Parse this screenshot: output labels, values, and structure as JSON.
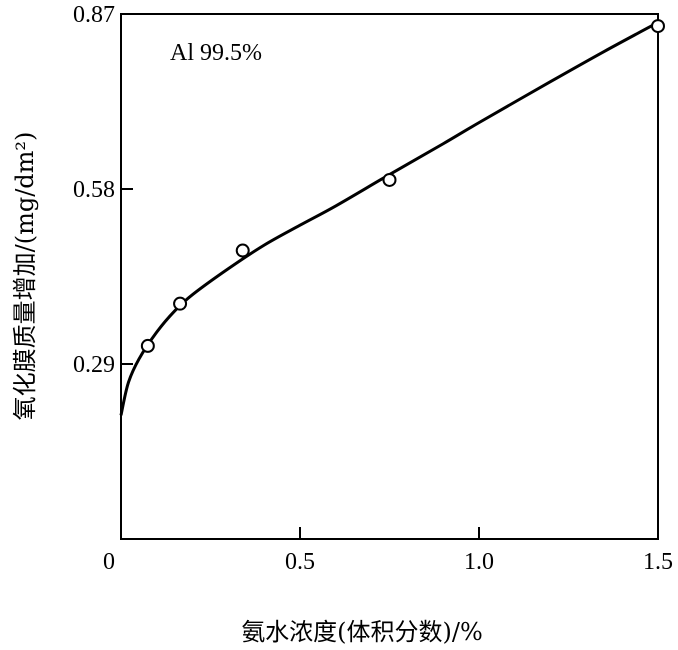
{
  "chart_data": {
    "type": "scatter",
    "title": "",
    "xlabel": "氨水浓度(体积分数)/%",
    "ylabel": "氧化膜质量增加/(mg/dm²)",
    "xlim": [
      0,
      1.5
    ],
    "ylim": [
      0,
      0.87
    ],
    "x_ticks": [
      {
        "value": 0,
        "label": "0"
      },
      {
        "value": 0.5,
        "label": "0.5"
      },
      {
        "value": 1.0,
        "label": "1.0"
      },
      {
        "value": 1.5,
        "label": "1.5"
      }
    ],
    "y_ticks": [
      {
        "value": 0.29,
        "label": "0.29"
      },
      {
        "value": 0.58,
        "label": "0.58"
      },
      {
        "value": 0.87,
        "label": "0.87"
      }
    ],
    "annotation": "Al 99.5%",
    "series": [
      {
        "marker": "open-circle",
        "points": [
          {
            "x": 0.075,
            "y": 0.32
          },
          {
            "x": 0.165,
            "y": 0.39
          },
          {
            "x": 0.34,
            "y": 0.478
          },
          {
            "x": 0.75,
            "y": 0.595
          },
          {
            "x": 1.5,
            "y": 0.85
          }
        ]
      }
    ],
    "fit_curve": {
      "points": [
        {
          "x": 0.0,
          "y": 0.205
        },
        {
          "x": 0.02,
          "y": 0.258
        },
        {
          "x": 0.05,
          "y": 0.298
        },
        {
          "x": 0.1,
          "y": 0.343
        },
        {
          "x": 0.15,
          "y": 0.378
        },
        {
          "x": 0.2,
          "y": 0.405
        },
        {
          "x": 0.3,
          "y": 0.448
        },
        {
          "x": 0.4,
          "y": 0.487
        },
        {
          "x": 0.5,
          "y": 0.52
        },
        {
          "x": 0.6,
          "y": 0.552
        },
        {
          "x": 0.75,
          "y": 0.604
        },
        {
          "x": 0.9,
          "y": 0.655
        },
        {
          "x": 1.0,
          "y": 0.69
        },
        {
          "x": 1.2,
          "y": 0.758
        },
        {
          "x": 1.35,
          "y": 0.808
        },
        {
          "x": 1.5,
          "y": 0.856
        }
      ]
    }
  }
}
